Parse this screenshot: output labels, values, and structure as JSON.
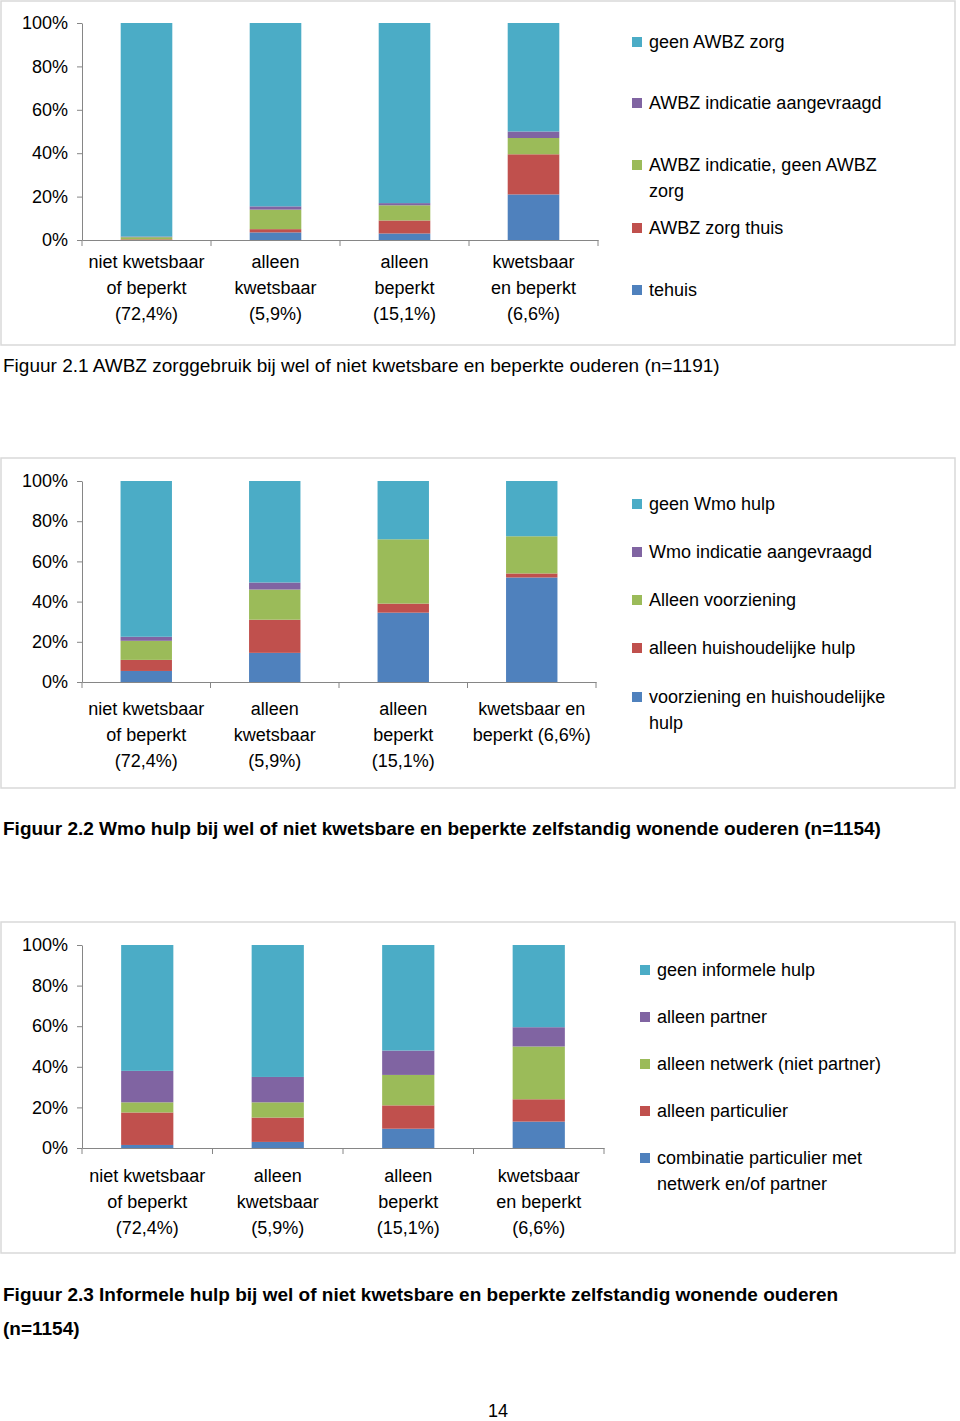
{
  "chart_data": [
    {
      "type": "bar",
      "stacked": true,
      "title": "Figuur 2.1 AWBZ zorggebruik bij wel of niet kwetsbare en beperkte ouderen (n=1191)",
      "categories": [
        "niet kwetsbaar\nof beperkt\n(72,4%)",
        "alleen\nkwetsbaar\n(5,9%)",
        "alleen\nbeperkt\n(15,1%)",
        "kwetsbaar\nen beperkt\n(6,6%)"
      ],
      "series": [
        {
          "name": "tehuis",
          "color": "#4f81bd",
          "values": [
            0,
            3.5,
            3,
            21
          ]
        },
        {
          "name": "AWBZ zorg thuis",
          "color": "#c0504d",
          "values": [
            0.3,
            1.5,
            6,
            18.5
          ]
        },
        {
          "name": "AWBZ indicatie, geen AWBZ\nzorg",
          "color": "#9bbb59",
          "values": [
            1,
            9,
            7,
            7.5
          ]
        },
        {
          "name": "AWBZ indicatie aangevraagd",
          "color": "#8064a2",
          "values": [
            0.3,
            1.5,
            1,
            3
          ]
        },
        {
          "name": "geen AWBZ zorg",
          "color": "#4bacc6",
          "values": [
            98.4,
            84.5,
            83,
            50
          ]
        }
      ],
      "ylim": [
        0,
        100
      ],
      "yticks": [
        {
          "value": 0,
          "label": "0%"
        },
        {
          "value": 20,
          "label": "20%"
        },
        {
          "value": 40,
          "label": "40%"
        },
        {
          "value": 60,
          "label": "60%"
        },
        {
          "value": 80,
          "label": "80%"
        },
        {
          "value": 100,
          "label": "100%"
        }
      ],
      "grid": false,
      "legend": "right"
    },
    {
      "type": "bar",
      "stacked": true,
      "title": "Figuur 2.2 Wmo hulp bij wel of niet kwetsbare en beperkte zelfstandig wonende ouderen (n=1154)",
      "categories": [
        "niet kwetsbaar\nof beperkt\n(72,4%)",
        "alleen\nkwetsbaar\n(5,9%)",
        "alleen\nbeperkt\n(15,1%)",
        "kwetsbaar    en\nbeperkt (6,6%)"
      ],
      "series": [
        {
          "name": "voorziening en huishoudelijke\nhulp",
          "color": "#4f81bd",
          "values": [
            5.5,
            14.5,
            34.5,
            52
          ]
        },
        {
          "name": "alleen huishoudelijke hulp",
          "color": "#c0504d",
          "values": [
            5.5,
            16.5,
            4.5,
            2
          ]
        },
        {
          "name": "Alleen voorziening",
          "color": "#9bbb59",
          "values": [
            9.5,
            15,
            32,
            18.5
          ]
        },
        {
          "name": "Wmo indicatie aangevraagd",
          "color": "#8064a2",
          "values": [
            2,
            3.5,
            0,
            0
          ]
        },
        {
          "name": "geen Wmo hulp",
          "color": "#4bacc6",
          "values": [
            77.5,
            50.5,
            29,
            27.5
          ]
        }
      ],
      "ylim": [
        0,
        100
      ],
      "yticks": [
        {
          "value": 0,
          "label": "0%"
        },
        {
          "value": 20,
          "label": "20%"
        },
        {
          "value": 40,
          "label": "40%"
        },
        {
          "value": 60,
          "label": "60%"
        },
        {
          "value": 80,
          "label": "80%"
        },
        {
          "value": 100,
          "label": "100%"
        }
      ],
      "grid": false,
      "legend": "right"
    },
    {
      "type": "bar",
      "stacked": true,
      "title": "Figuur 2.3 Informele hulp bij wel of niet kwetsbare en beperkte zelfstandig wonende ouderen\n(n=1154)",
      "categories": [
        "niet kwetsbaar\nof beperkt\n(72,4%)",
        "alleen\nkwetsbaar\n(5,9%)",
        "alleen\nbeperkt\n(15,1%)",
        "kwetsbaar\nen beperkt\n(6,6%)"
      ],
      "series": [
        {
          "name": "combinatie particulier met\nnetwerk en/of partner",
          "color": "#4f81bd",
          "values": [
            1.5,
            3,
            9.5,
            13
          ]
        },
        {
          "name": "alleen particulier",
          "color": "#c0504d",
          "values": [
            16,
            12,
            11.5,
            11
          ]
        },
        {
          "name": "alleen netwerk (niet partner)",
          "color": "#9bbb59",
          "values": [
            5,
            7.5,
            15,
            26
          ]
        },
        {
          "name": "alleen partner",
          "color": "#8064a2",
          "values": [
            15.5,
            12.5,
            12,
            9.5
          ]
        },
        {
          "name": "geen informele hulp",
          "color": "#4bacc6",
          "values": [
            62,
            65,
            52,
            40.5
          ]
        }
      ],
      "ylim": [
        0,
        100
      ],
      "yticks": [
        {
          "value": 0,
          "label": "0%"
        },
        {
          "value": 20,
          "label": "20%"
        },
        {
          "value": 40,
          "label": "40%"
        },
        {
          "value": 60,
          "label": "60%"
        },
        {
          "value": 80,
          "label": "80%"
        },
        {
          "value": 100,
          "label": "100%"
        }
      ],
      "grid": false,
      "legend": "right"
    }
  ],
  "page_number": 14
}
